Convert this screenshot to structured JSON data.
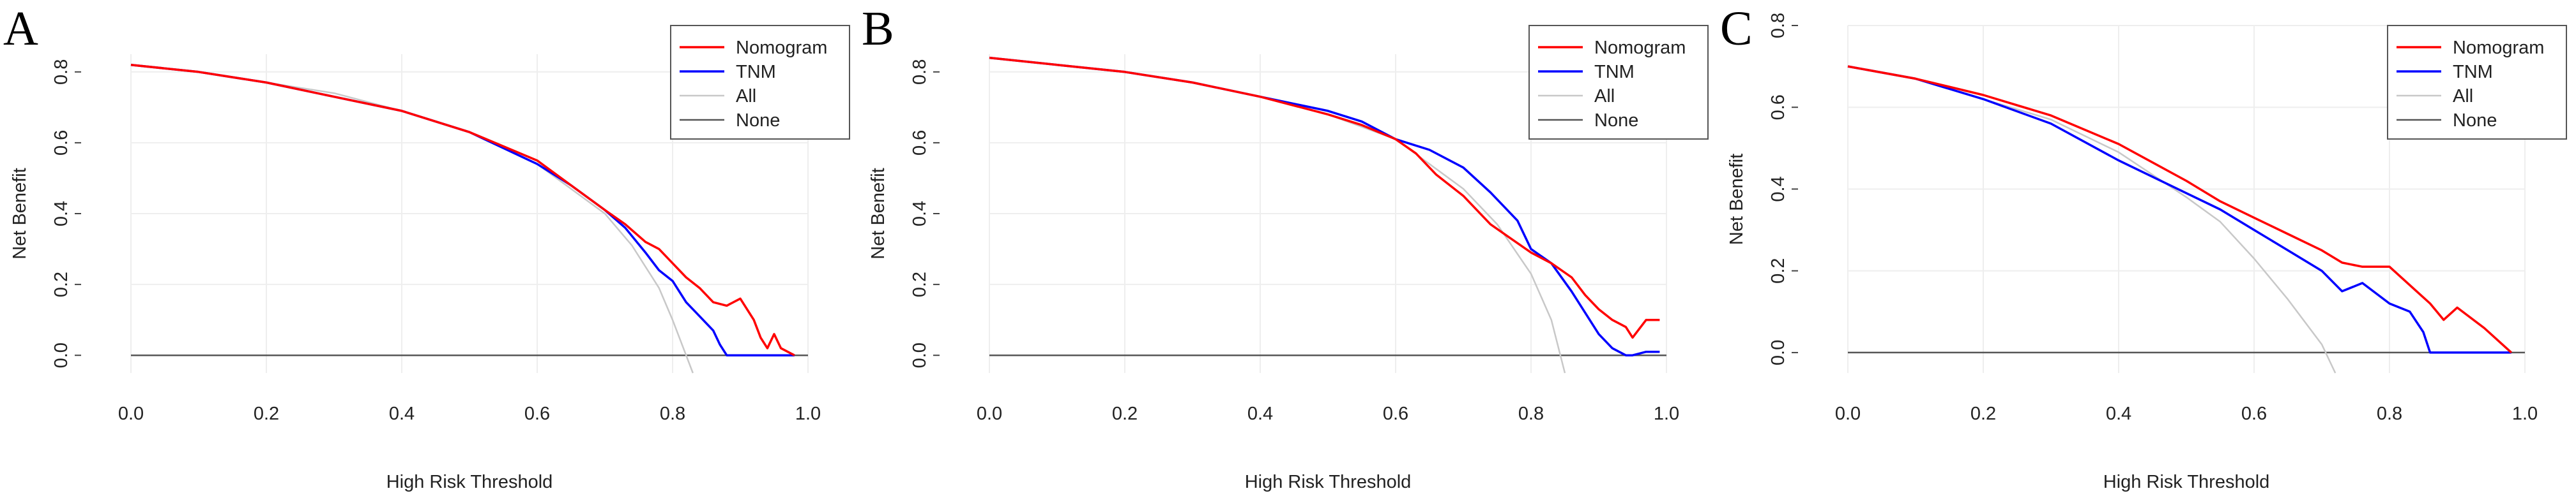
{
  "chart_data": [
    {
      "panel_label": "A",
      "type": "line",
      "xlabel": "High Risk Threshold",
      "ylabel": "Net Benefit",
      "xlim": [
        0.0,
        1.0
      ],
      "ylim": [
        -0.05,
        0.85
      ],
      "x_ticks": [
        "0.0",
        "0.2",
        "0.4",
        "0.6",
        "0.8",
        "1.0"
      ],
      "y_ticks": [
        "0.0",
        "0.2",
        "0.4",
        "0.6",
        "0.8"
      ],
      "grid": true,
      "legend_position": "top-right",
      "legend": [
        "Nomogram",
        "TNM",
        "All",
        "None"
      ],
      "series": [
        {
          "name": "Nomogram",
          "color": "#ff0000",
          "x": [
            0.0,
            0.1,
            0.2,
            0.3,
            0.4,
            0.5,
            0.6,
            0.65,
            0.7,
            0.73,
            0.76,
            0.78,
            0.8,
            0.82,
            0.84,
            0.86,
            0.88,
            0.9,
            0.92,
            0.93,
            0.94,
            0.95,
            0.96,
            0.98
          ],
          "y": [
            0.82,
            0.8,
            0.77,
            0.73,
            0.69,
            0.63,
            0.55,
            0.48,
            0.41,
            0.37,
            0.32,
            0.3,
            0.26,
            0.22,
            0.19,
            0.15,
            0.14,
            0.16,
            0.1,
            0.05,
            0.02,
            0.06,
            0.02,
            0.0
          ]
        },
        {
          "name": "TNM",
          "color": "#0000ff",
          "x": [
            0.0,
            0.1,
            0.2,
            0.3,
            0.4,
            0.5,
            0.6,
            0.65,
            0.7,
            0.73,
            0.76,
            0.78,
            0.8,
            0.82,
            0.84,
            0.86,
            0.87,
            0.88,
            0.9,
            0.98
          ],
          "y": [
            0.82,
            0.8,
            0.77,
            0.73,
            0.69,
            0.63,
            0.54,
            0.48,
            0.41,
            0.36,
            0.29,
            0.24,
            0.21,
            0.15,
            0.11,
            0.07,
            0.03,
            0.0,
            0.0,
            0.0
          ]
        },
        {
          "name": "All",
          "color": "#c8c8c8",
          "x": [
            0.0,
            0.1,
            0.2,
            0.3,
            0.4,
            0.5,
            0.6,
            0.7,
            0.74,
            0.78,
            0.8,
            0.82,
            0.83
          ],
          "y": [
            0.82,
            0.8,
            0.77,
            0.74,
            0.69,
            0.63,
            0.54,
            0.4,
            0.31,
            0.19,
            0.1,
            0.0,
            -0.05
          ]
        },
        {
          "name": "None",
          "color": "#555555",
          "x": [
            0.0,
            1.0
          ],
          "y": [
            0.0,
            0.0
          ]
        }
      ]
    },
    {
      "panel_label": "B",
      "type": "line",
      "xlabel": "High Risk Threshold",
      "ylabel": "Net Benefit",
      "xlim": [
        0.0,
        1.0
      ],
      "ylim": [
        -0.05,
        0.85
      ],
      "x_ticks": [
        "0.0",
        "0.2",
        "0.4",
        "0.6",
        "0.8",
        "1.0"
      ],
      "y_ticks": [
        "0.0",
        "0.2",
        "0.4",
        "0.6",
        "0.8"
      ],
      "grid": true,
      "legend_position": "top-right",
      "legend": [
        "Nomogram",
        "TNM",
        "All",
        "None"
      ],
      "series": [
        {
          "name": "Nomogram",
          "color": "#ff0000",
          "x": [
            0.0,
            0.1,
            0.2,
            0.3,
            0.4,
            0.5,
            0.55,
            0.6,
            0.63,
            0.66,
            0.7,
            0.74,
            0.77,
            0.8,
            0.83,
            0.86,
            0.88,
            0.9,
            0.92,
            0.94,
            0.95,
            0.97,
            0.99
          ],
          "y": [
            0.84,
            0.82,
            0.8,
            0.77,
            0.73,
            0.68,
            0.65,
            0.61,
            0.57,
            0.51,
            0.45,
            0.37,
            0.33,
            0.29,
            0.26,
            0.22,
            0.17,
            0.13,
            0.1,
            0.08,
            0.05,
            0.1,
            0.1
          ]
        },
        {
          "name": "TNM",
          "color": "#0000ff",
          "x": [
            0.0,
            0.1,
            0.2,
            0.3,
            0.4,
            0.5,
            0.55,
            0.6,
            0.65,
            0.7,
            0.74,
            0.78,
            0.8,
            0.83,
            0.86,
            0.88,
            0.9,
            0.92,
            0.94,
            0.95,
            0.97,
            0.99
          ],
          "y": [
            0.84,
            0.82,
            0.8,
            0.77,
            0.73,
            0.69,
            0.66,
            0.61,
            0.58,
            0.53,
            0.46,
            0.38,
            0.3,
            0.26,
            0.18,
            0.12,
            0.06,
            0.02,
            0.0,
            0.0,
            0.01,
            0.01
          ]
        },
        {
          "name": "All",
          "color": "#c8c8c8",
          "x": [
            0.0,
            0.1,
            0.2,
            0.3,
            0.4,
            0.5,
            0.6,
            0.7,
            0.75,
            0.8,
            0.83,
            0.85
          ],
          "y": [
            0.84,
            0.82,
            0.8,
            0.77,
            0.73,
            0.68,
            0.61,
            0.47,
            0.37,
            0.23,
            0.1,
            -0.05
          ]
        },
        {
          "name": "None",
          "color": "#555555",
          "x": [
            0.0,
            1.0
          ],
          "y": [
            0.0,
            0.0
          ]
        }
      ]
    },
    {
      "panel_label": "C",
      "type": "line",
      "xlabel": "High Risk Threshold",
      "ylabel": "Net Benefit",
      "xlim": [
        0.0,
        1.0
      ],
      "ylim": [
        -0.05,
        0.8
      ],
      "x_ticks": [
        "0.0",
        "0.2",
        "0.4",
        "0.6",
        "0.8",
        "1.0"
      ],
      "y_ticks": [
        "0.0",
        "0.2",
        "0.4",
        "0.6",
        "0.8"
      ],
      "grid": true,
      "legend_position": "top-right",
      "legend": [
        "Nomogram",
        "TNM",
        "All",
        "None"
      ],
      "series": [
        {
          "name": "Nomogram",
          "color": "#ff0000",
          "x": [
            0.0,
            0.1,
            0.2,
            0.3,
            0.4,
            0.5,
            0.55,
            0.6,
            0.65,
            0.7,
            0.73,
            0.76,
            0.8,
            0.84,
            0.86,
            0.88,
            0.9,
            0.94,
            0.98
          ],
          "y": [
            0.7,
            0.67,
            0.63,
            0.58,
            0.51,
            0.42,
            0.37,
            0.33,
            0.29,
            0.25,
            0.22,
            0.21,
            0.21,
            0.15,
            0.12,
            0.08,
            0.11,
            0.06,
            0.0
          ]
        },
        {
          "name": "TNM",
          "color": "#0000ff",
          "x": [
            0.0,
            0.1,
            0.2,
            0.3,
            0.4,
            0.5,
            0.55,
            0.6,
            0.65,
            0.7,
            0.73,
            0.76,
            0.8,
            0.83,
            0.85,
            0.86,
            0.9,
            0.98
          ],
          "y": [
            0.7,
            0.67,
            0.62,
            0.56,
            0.47,
            0.39,
            0.35,
            0.3,
            0.25,
            0.2,
            0.15,
            0.17,
            0.12,
            0.1,
            0.05,
            0.0,
            0.0,
            0.0
          ]
        },
        {
          "name": "All",
          "color": "#c8c8c8",
          "x": [
            0.0,
            0.1,
            0.2,
            0.3,
            0.4,
            0.5,
            0.55,
            0.6,
            0.65,
            0.7,
            0.72
          ],
          "y": [
            0.7,
            0.67,
            0.62,
            0.57,
            0.49,
            0.38,
            0.32,
            0.23,
            0.13,
            0.02,
            -0.05
          ]
        },
        {
          "name": "None",
          "color": "#555555",
          "x": [
            0.0,
            1.0
          ],
          "y": [
            0.0,
            0.0
          ]
        }
      ]
    }
  ]
}
